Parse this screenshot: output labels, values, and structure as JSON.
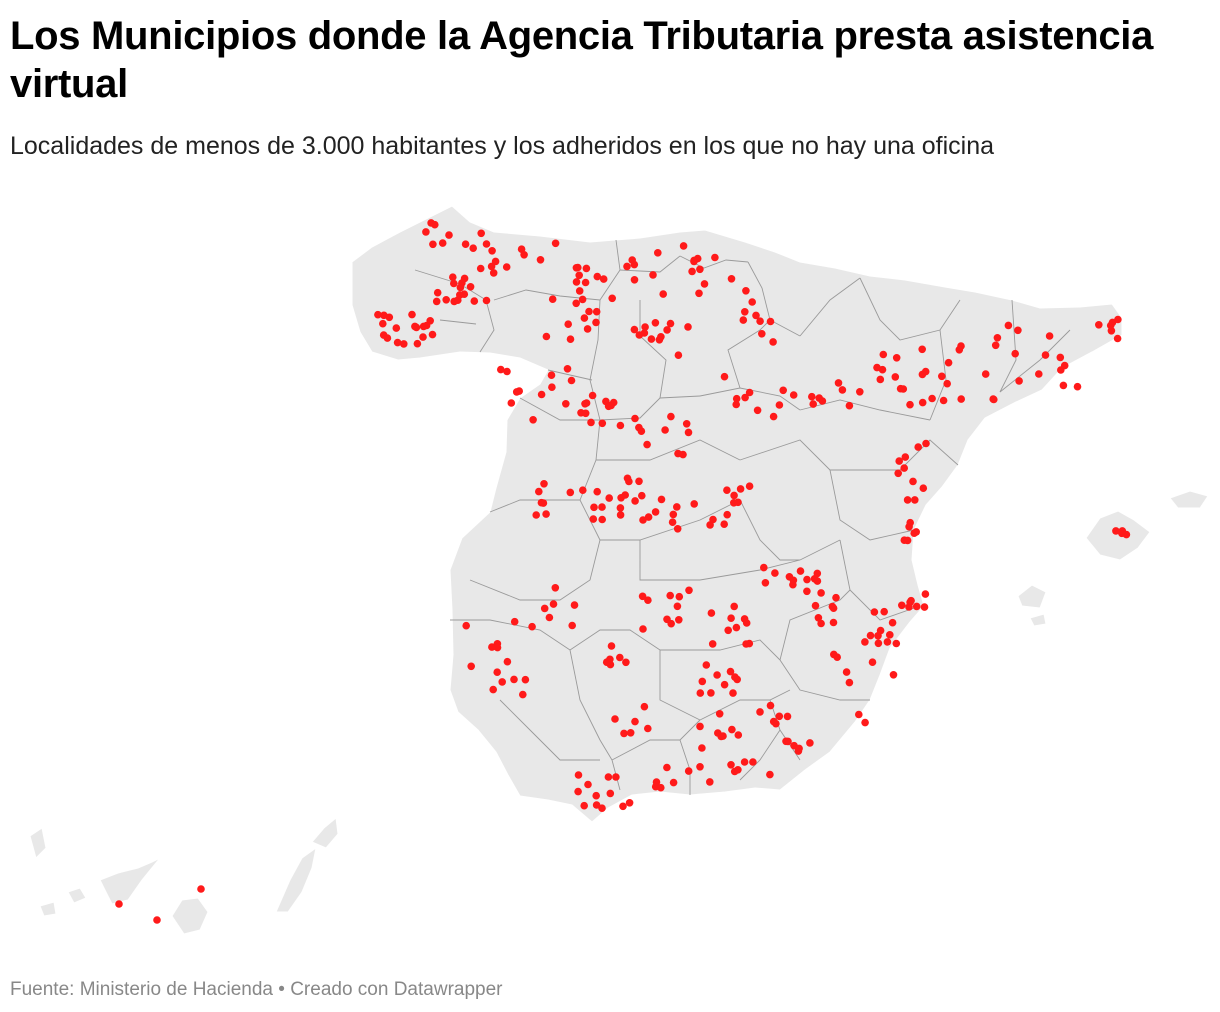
{
  "title": "Los Municipios donde la Agencia Tributaria presta asistencia virtual",
  "subtitle": "Localidades de menos de 3.000 habitantes y los adheridos en los que no hay una oficina",
  "footer": {
    "source": "Fuente: Ministerio de Hacienda",
    "separator": " • ",
    "credit": "Creado con Datawrapper"
  },
  "colors": {
    "marker": "#ff1a1a",
    "land": "#e8e8e8",
    "borders": "#9a9a9a",
    "footer_text": "#888888"
  }
}
